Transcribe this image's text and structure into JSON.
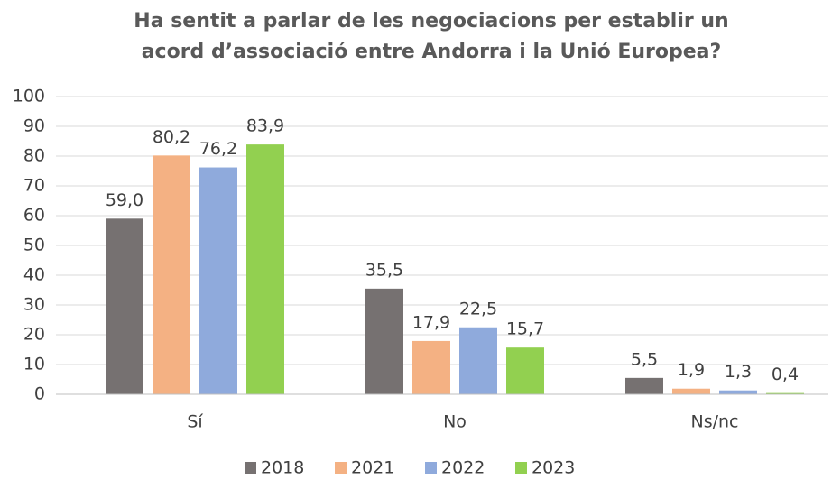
{
  "chart_data": {
    "type": "bar",
    "title": [
      "Ha sentit a parlar de les negociacions per establir un",
      "acord d’associació entre Andorra i la Unió Europea?"
    ],
    "categories": [
      "Sí",
      "No",
      "Ns/nc"
    ],
    "series": [
      {
        "name": "2018",
        "color": "#767171",
        "values": [
          59.0,
          35.5,
          5.5
        ],
        "value_labels": [
          "59,0",
          "35,5",
          "5,5"
        ]
      },
      {
        "name": "2021",
        "color": "#f4b183",
        "values": [
          80.2,
          17.9,
          1.9
        ],
        "value_labels": [
          "80,2",
          "17,9",
          "1,9"
        ]
      },
      {
        "name": "2022",
        "color": "#8faadc",
        "values": [
          76.2,
          22.5,
          1.3
        ],
        "value_labels": [
          "76,2",
          "22,5",
          "1,3"
        ]
      },
      {
        "name": "2023",
        "color": "#92d050",
        "values": [
          83.9,
          15.7,
          0.4
        ],
        "value_labels": [
          "83,9",
          "15,7",
          "0,4"
        ]
      }
    ],
    "ylim": [
      0,
      100
    ],
    "yticks": [
      0,
      10,
      20,
      30,
      40,
      50,
      60,
      70,
      80,
      90,
      100
    ],
    "grid": true,
    "legend": "bottom"
  }
}
